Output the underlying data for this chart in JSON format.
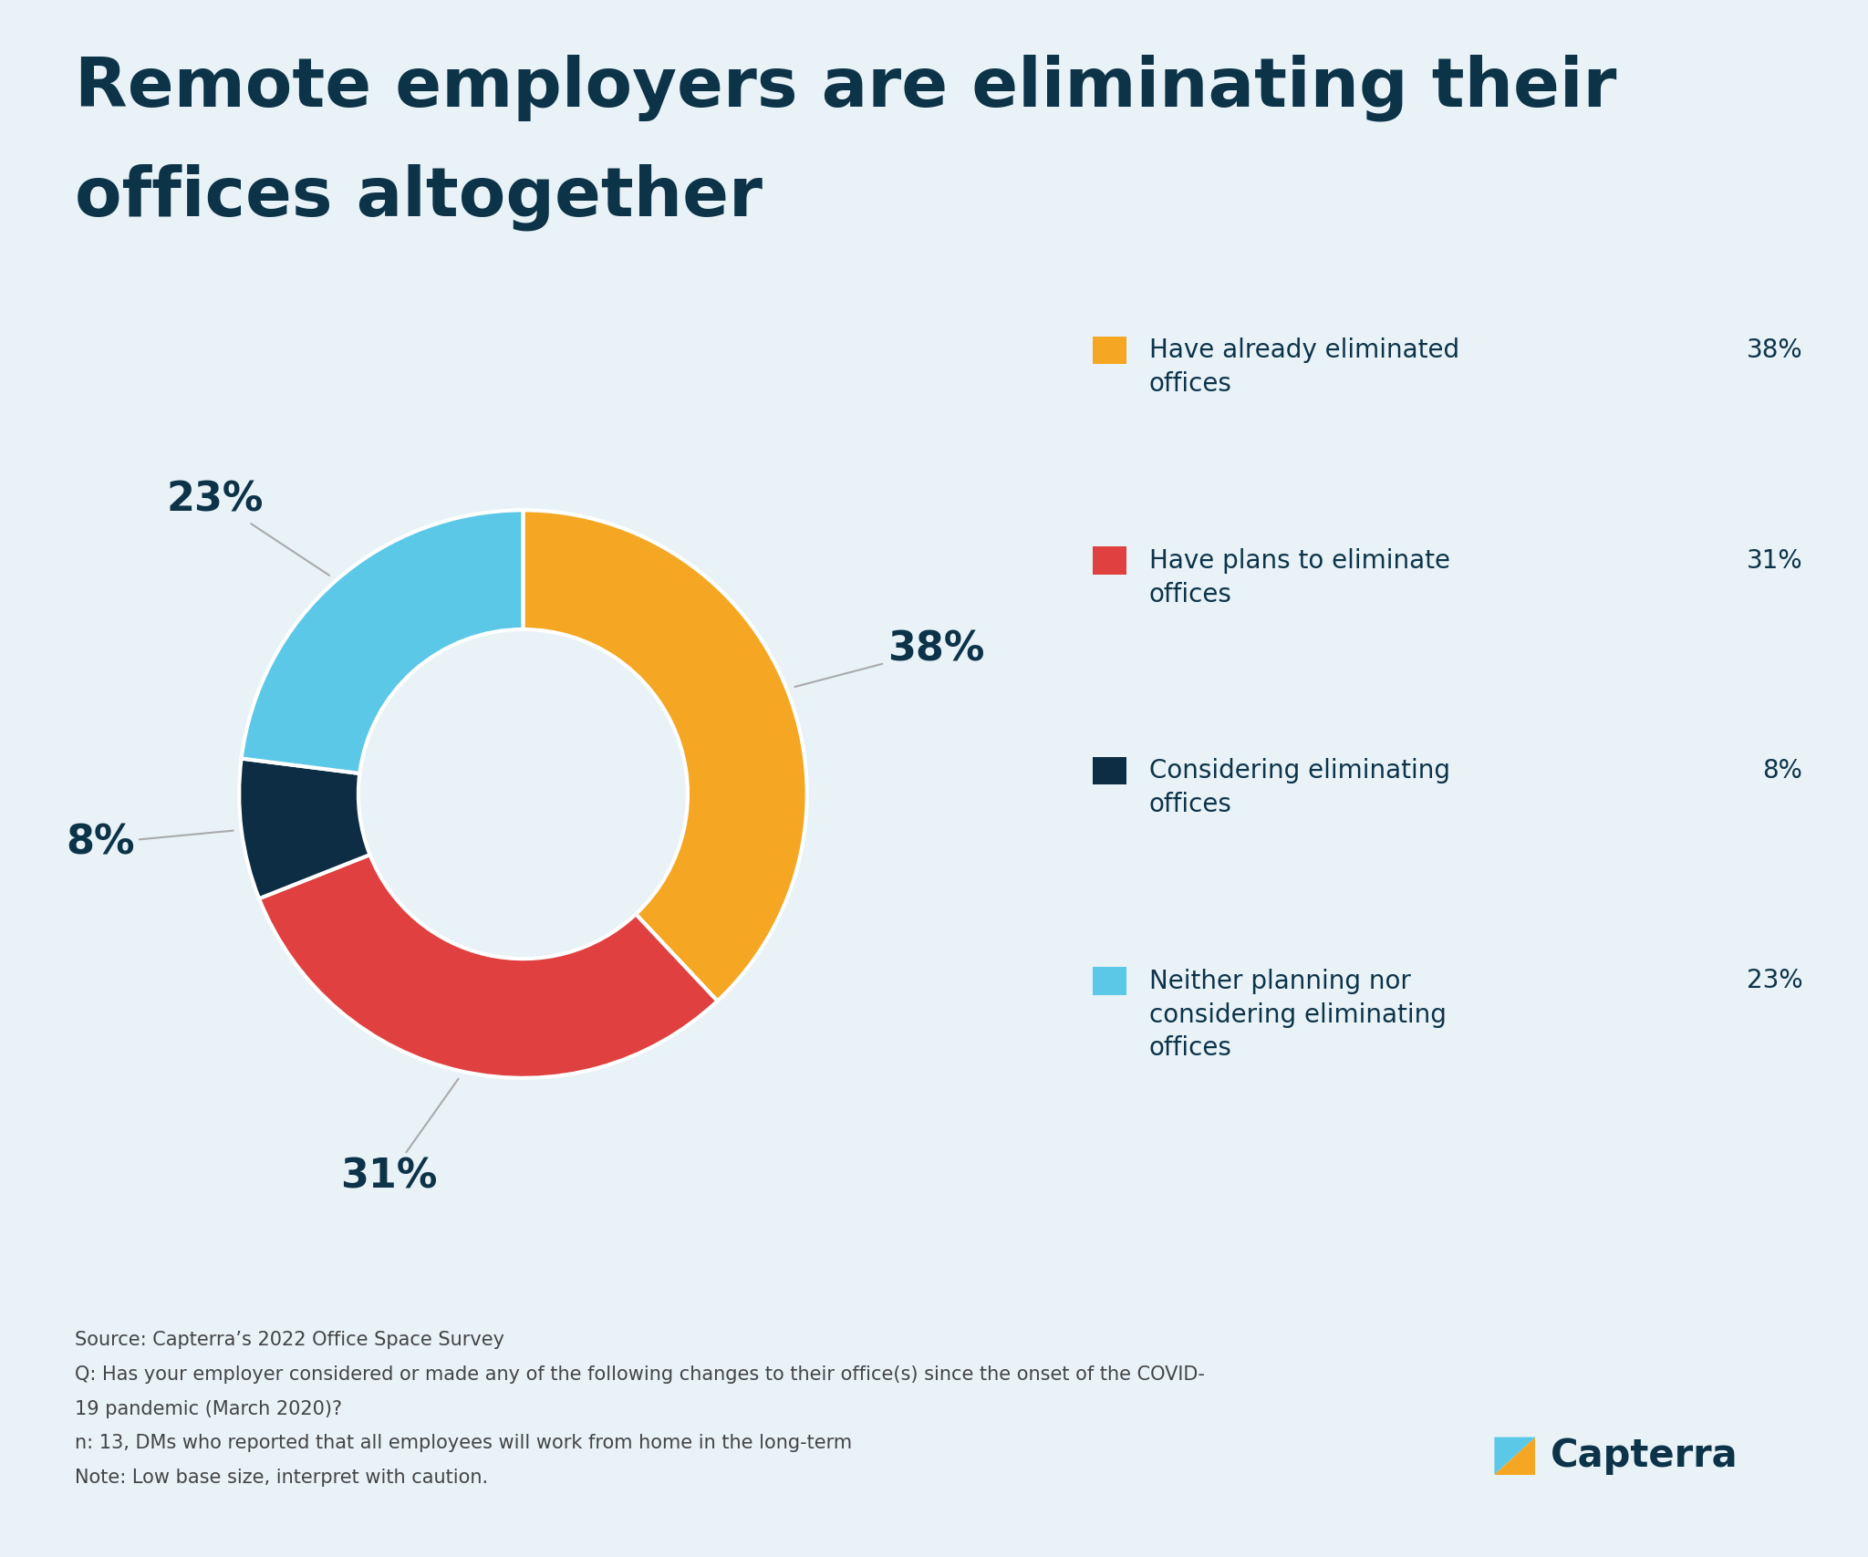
{
  "title_line1": "Remote employers are eliminating their",
  "title_line2": "offices altogether",
  "title_color": "#0d3349",
  "background_color": "#e8f2f7",
  "slices": [
    38,
    31,
    8,
    23
  ],
  "colors": [
    "#f5a623",
    "#e04040",
    "#0d2d45",
    "#5bc8e8"
  ],
  "legend_labels": [
    "Have already eliminated\noffices",
    "Have plans to eliminate\noffices",
    "Considering eliminating\noffices",
    "Neither planning nor\nconsidering eliminating\noffices"
  ],
  "legend_values": [
    "38%",
    "31%",
    "8%",
    "23%"
  ],
  "start_angle": 90,
  "donut_width": 0.42,
  "footnote_lines": [
    "Source: Capterra’s 2022 Office Space Survey",
    "Q: Has your employer considered or made any of the following changes to their office(s) since the onset of the COVID-",
    "19 pandemic (March 2020)?",
    "n: 13, DMs who reported that all employees will work from home in the long-term",
    "Note: Low base size, interpret with caution."
  ]
}
